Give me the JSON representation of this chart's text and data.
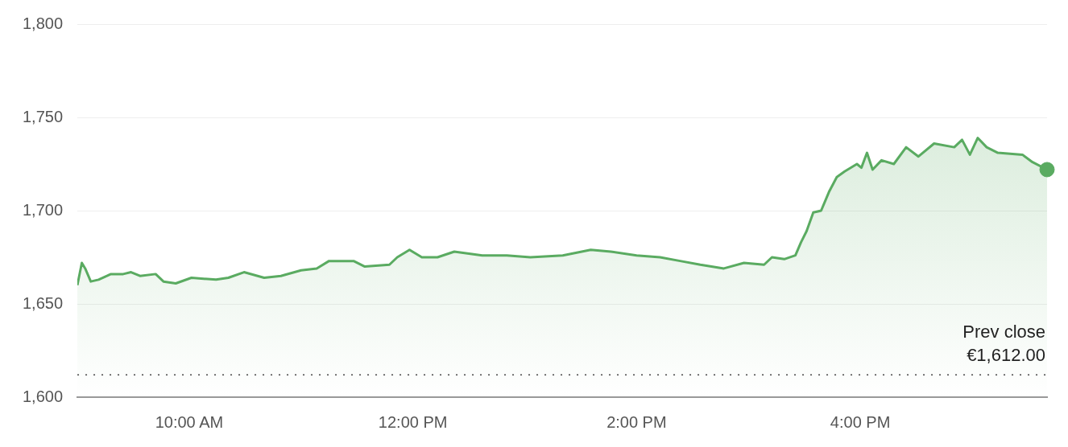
{
  "chart_data": {
    "type": "area",
    "x": [
      9.0,
      9.04,
      9.07,
      9.12,
      9.19,
      9.3,
      9.41,
      9.48,
      9.56,
      9.7,
      9.77,
      9.88,
      10.02,
      10.24,
      10.35,
      10.49,
      10.67,
      10.82,
      11.0,
      11.14,
      11.25,
      11.47,
      11.57,
      11.79,
      11.86,
      11.97,
      12.08,
      12.22,
      12.37,
      12.62,
      12.84,
      13.05,
      13.34,
      13.59,
      13.77,
      14.0,
      14.21,
      14.39,
      14.57,
      14.78,
      14.96,
      15.14,
      15.21,
      15.32,
      15.42,
      15.47,
      15.52,
      15.58,
      15.65,
      15.72,
      15.79,
      15.86,
      15.97,
      16.01,
      16.06,
      16.11,
      16.19,
      16.3,
      16.41,
      16.52,
      16.66,
      16.84,
      16.91,
      16.98,
      17.05,
      17.13,
      17.23,
      17.45,
      17.54,
      17.67
    ],
    "series": [
      {
        "color": "#5aab61",
        "marker": "none",
        "values": [
          1660,
          1672,
          1669,
          1662,
          1663,
          1666,
          1666,
          1667,
          1665,
          1666,
          1662,
          1661,
          1664,
          1663,
          1664,
          1667,
          1664,
          1665,
          1668,
          1669,
          1673,
          1673,
          1670,
          1671,
          1675,
          1679,
          1675,
          1675,
          1678,
          1676,
          1676,
          1675,
          1676,
          1679,
          1678,
          1676,
          1675,
          1673,
          1671,
          1669,
          1672,
          1671,
          1675,
          1674,
          1676,
          1683,
          1689,
          1699,
          1700,
          1710,
          1718,
          1721,
          1725,
          1723,
          1731,
          1722,
          1727,
          1725,
          1734,
          1729,
          1736,
          1734,
          1738,
          1730,
          1739,
          1734,
          1731,
          1730,
          1726,
          1722
        ]
      },
      {
        "type": "scatter",
        "color": "#5aab61",
        "marker": "circle",
        "x": [
          17.67
        ],
        "values": [
          1722
        ]
      }
    ],
    "line_style": "solid",
    "grid": "y",
    "legend": false,
    "xlim": [
      9,
      17.67
    ],
    "xticks": [
      {
        "value": 10,
        "label": "10:00 AM"
      },
      {
        "value": 12,
        "label": "12:00 PM"
      },
      {
        "value": 14,
        "label": "2:00 PM"
      },
      {
        "value": 16,
        "label": "4:00 PM"
      }
    ],
    "ylim": [
      1600,
      1800
    ],
    "yticks": [
      {
        "value": 1600,
        "label": "1,600"
      },
      {
        "value": 1650,
        "label": "1,650"
      },
      {
        "value": 1700,
        "label": "1,700"
      },
      {
        "value": 1750,
        "label": "1,750"
      },
      {
        "value": 1800,
        "label": "1,800"
      }
    ],
    "ref_lines": [
      {
        "axis": "y",
        "value": 1612,
        "label": "Prev close\n€1,612.00",
        "color": "#444444",
        "line_style": "dotted"
      }
    ]
  }
}
